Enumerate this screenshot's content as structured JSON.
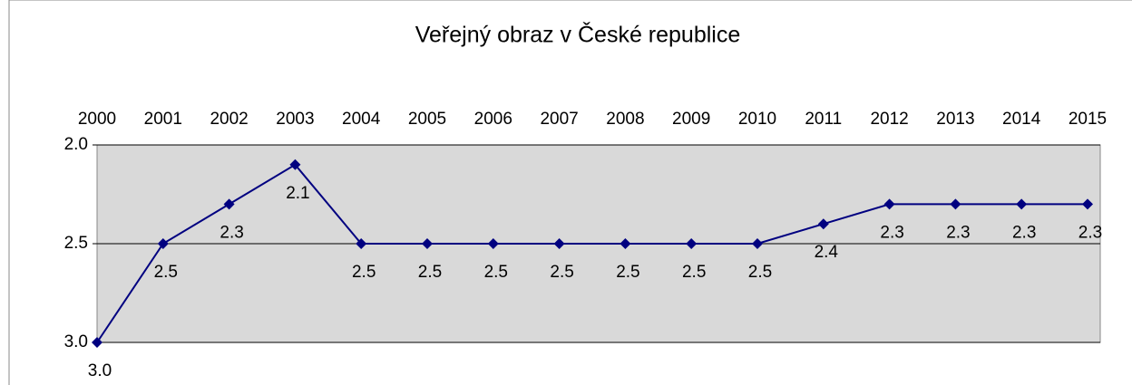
{
  "chart_data": {
    "type": "line",
    "title": "Veřejný obraz v České republice",
    "categories": [
      "2000",
      "2001",
      "2002",
      "2003",
      "2004",
      "2005",
      "2006",
      "2007",
      "2008",
      "2009",
      "2010",
      "2011",
      "2012",
      "2013",
      "2014",
      "2015"
    ],
    "series": [
      {
        "name": null,
        "color": "#000080",
        "values": [
          3.0,
          2.5,
          2.3,
          2.1,
          2.5,
          2.5,
          2.5,
          2.5,
          2.5,
          2.5,
          2.5,
          2.4,
          2.3,
          2.3,
          2.3,
          2.3
        ],
        "value_labels": [
          "3.0",
          "2.5",
          "2.3",
          "2.1",
          "2.5",
          "2.5",
          "2.5",
          "2.5",
          "2.5",
          "2.5",
          "2.5",
          "2.4",
          "2.3",
          "2.3",
          "2.3",
          "2.3"
        ]
      }
    ],
    "ylim": [
      2,
      3
    ],
    "yticks": [
      {
        "value": 2,
        "label": "2.0"
      },
      2.5,
      {
        "value": 3,
        "label": "3.0"
      }
    ],
    "y_inverted": true,
    "x_axis_position": "top",
    "grid": true,
    "plot_background": "#d9d9d9"
  }
}
